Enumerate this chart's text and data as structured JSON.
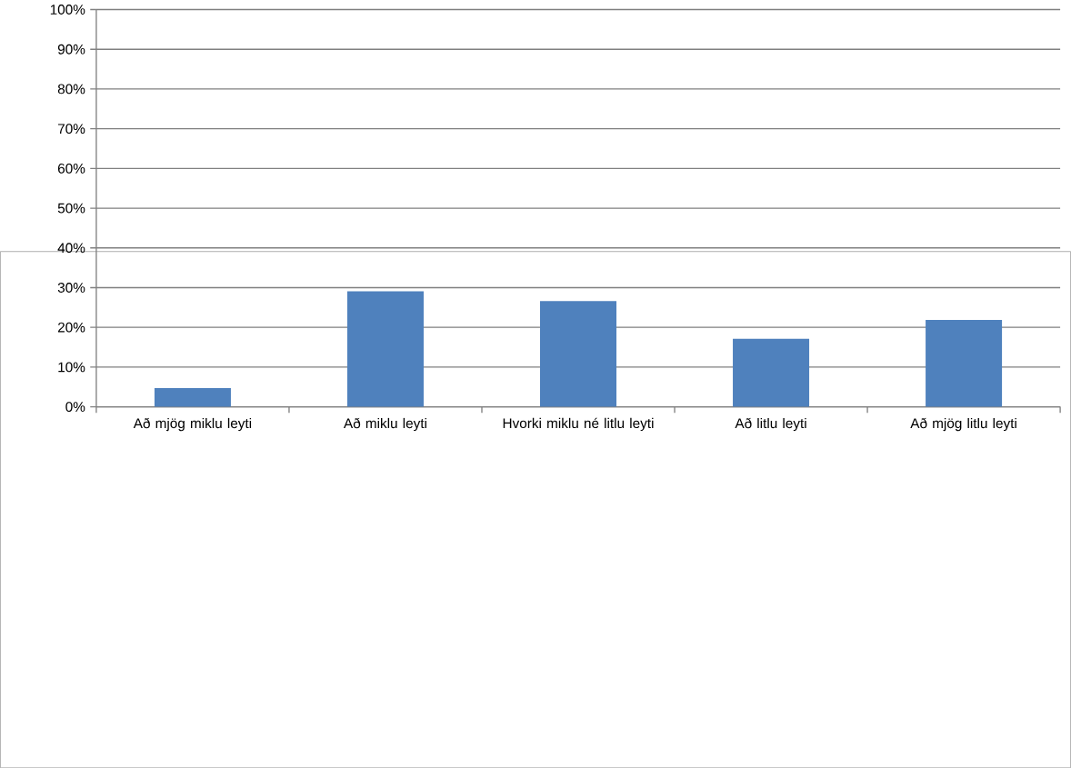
{
  "chart_data": {
    "type": "bar",
    "categories": [
      "Að mjög miklu leyti",
      "Að miklu leyti",
      "Hvorki miklu né litlu leyti",
      "Að litlu leyti",
      "Að mjög litlu leyti"
    ],
    "values": [
      4.7,
      29.1,
      26.6,
      17.1,
      21.9
    ],
    "color": "#4f81bd",
    "ylim": [
      0,
      100
    ],
    "yticks": [
      {
        "value": 0,
        "label": "0%"
      },
      {
        "value": 10,
        "label": "10%"
      },
      {
        "value": 20,
        "label": "20%"
      },
      {
        "value": 30,
        "label": "30%"
      },
      {
        "value": 40,
        "label": "40%"
      },
      {
        "value": 50,
        "label": "50%"
      },
      {
        "value": 60,
        "label": "60%"
      },
      {
        "value": 70,
        "label": "70%"
      },
      {
        "value": 80,
        "label": "80%"
      },
      {
        "value": 90,
        "label": "90%"
      },
      {
        "value": 100,
        "label": "100%"
      }
    ],
    "grid": "y"
  }
}
